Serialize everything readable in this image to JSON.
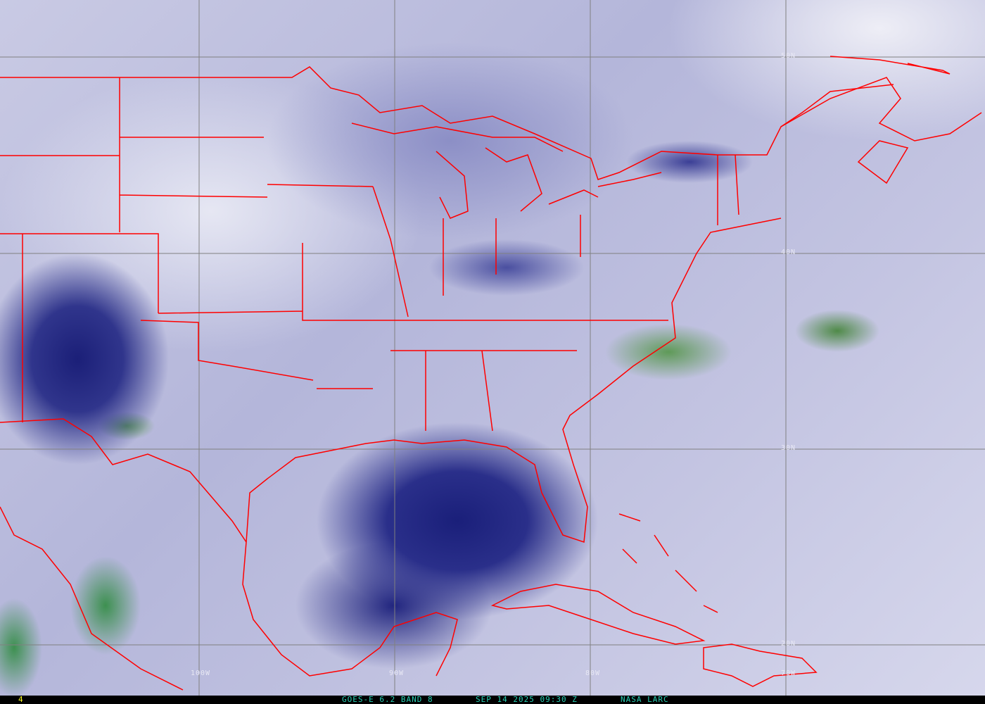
{
  "map": {
    "latitude_labels": [
      "50N",
      "40N",
      "30N",
      "20N"
    ],
    "longitude_labels": [
      "100W",
      "90W",
      "80W",
      "70W"
    ],
    "grid_color": "#808080",
    "border_color": "#ff0000"
  },
  "footer": {
    "frame_number": "4",
    "satellite_band": "GOES-E 6.2 BAND 8",
    "timestamp": "SEP 14 2025 09:30 Z",
    "credit": "NASA LARC",
    "text_color": "#28d0b4"
  }
}
